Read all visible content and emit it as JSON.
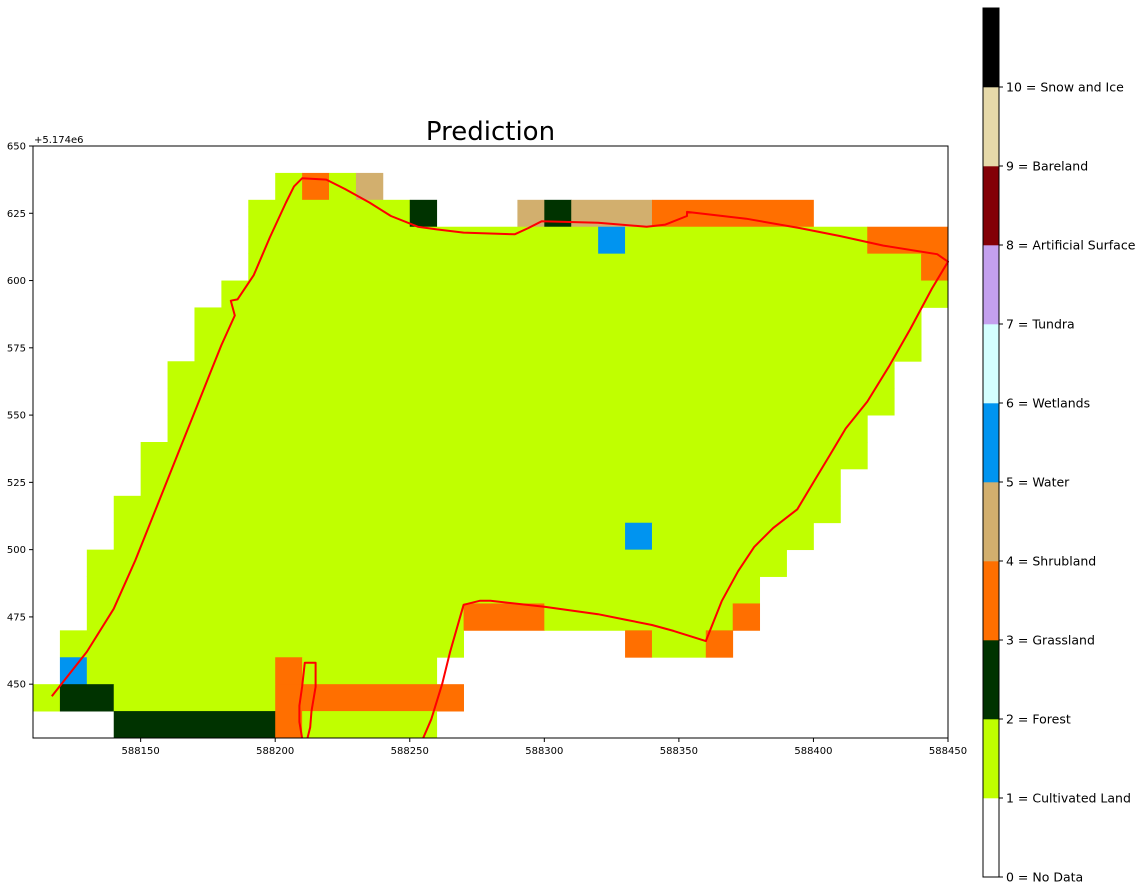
{
  "chart_data": {
    "type": "heatmap",
    "title": "Prediction",
    "offset_label": "+5.174e6",
    "xlim": [
      588110,
      588450
    ],
    "ylim": [
      430,
      650
    ],
    "x_tick_values": [
      588150,
      588200,
      588250,
      588300,
      588350,
      588400,
      588450
    ],
    "x_tick_labels": [
      "588150",
      "588200",
      "588250",
      "588300",
      "588350",
      "588400",
      "588450"
    ],
    "y_tick_values": [
      450,
      475,
      500,
      525,
      550,
      575,
      600,
      625,
      650
    ],
    "y_tick_labels": [
      "450",
      "475",
      "500",
      "525",
      "550",
      "575",
      "600",
      "625",
      "650"
    ],
    "cell_size": 10,
    "background_class": 0,
    "rows": [
      {
        "y": 630,
        "cells": [
          [
            588200,
            588210,
            1
          ],
          [
            588210,
            588220,
            3
          ],
          [
            588220,
            588230,
            1
          ],
          [
            588230,
            588240,
            4
          ]
        ]
      },
      {
        "y": 620,
        "cells": [
          [
            588190,
            588250,
            1
          ],
          [
            588250,
            588260,
            2
          ],
          [
            588290,
            588300,
            4
          ],
          [
            588300,
            588310,
            2
          ],
          [
            588310,
            588340,
            4
          ],
          [
            588340,
            588400,
            3
          ]
        ]
      },
      {
        "y": 610,
        "cells": [
          [
            588190,
            588320,
            1
          ],
          [
            588320,
            588330,
            5
          ],
          [
            588330,
            588420,
            1
          ],
          [
            588420,
            588450,
            3
          ]
        ]
      },
      {
        "y": 600,
        "cells": [
          [
            588190,
            588440,
            1
          ],
          [
            588440,
            588450,
            3
          ]
        ]
      },
      {
        "y": 590,
        "cells": [
          [
            588180,
            588450,
            1
          ]
        ]
      },
      {
        "y": 580,
        "cells": [
          [
            588170,
            588440,
            1
          ]
        ]
      },
      {
        "y": 570,
        "cells": [
          [
            588170,
            588440,
            1
          ]
        ]
      },
      {
        "y": 560,
        "cells": [
          [
            588160,
            588430,
            1
          ]
        ]
      },
      {
        "y": 550,
        "cells": [
          [
            588160,
            588430,
            1
          ]
        ]
      },
      {
        "y": 540,
        "cells": [
          [
            588160,
            588420,
            1
          ]
        ]
      },
      {
        "y": 530,
        "cells": [
          [
            588150,
            588420,
            1
          ]
        ]
      },
      {
        "y": 520,
        "cells": [
          [
            588150,
            588410,
            1
          ]
        ]
      },
      {
        "y": 510,
        "cells": [
          [
            588140,
            588410,
            1
          ]
        ]
      },
      {
        "y": 500,
        "cells": [
          [
            588140,
            588330,
            1
          ],
          [
            588330,
            588340,
            5
          ],
          [
            588340,
            588400,
            1
          ]
        ]
      },
      {
        "y": 490,
        "cells": [
          [
            588130,
            588390,
            1
          ]
        ]
      },
      {
        "y": 480,
        "cells": [
          [
            588130,
            588380,
            1
          ]
        ]
      },
      {
        "y": 470,
        "cells": [
          [
            588130,
            588270,
            1
          ],
          [
            588270,
            588300,
            3
          ],
          [
            588300,
            588370,
            1
          ],
          [
            588370,
            588380,
            3
          ]
        ]
      },
      {
        "y": 460,
        "cells": [
          [
            588120,
            588270,
            1
          ],
          [
            588330,
            588340,
            3
          ],
          [
            588340,
            588360,
            1
          ],
          [
            588360,
            588370,
            3
          ]
        ]
      },
      {
        "y": 450,
        "cells": [
          [
            588120,
            588130,
            5
          ],
          [
            588130,
            588200,
            1
          ],
          [
            588200,
            588210,
            3
          ],
          [
            588210,
            588260,
            1
          ]
        ]
      },
      {
        "y": 440,
        "cells": [
          [
            588110,
            588120,
            1
          ],
          [
            588120,
            588140,
            2
          ],
          [
            588140,
            588200,
            1
          ],
          [
            588200,
            588210,
            3
          ],
          [
            588210,
            588270,
            3
          ]
        ]
      },
      {
        "y": 430,
        "cells": [
          [
            588140,
            588200,
            2
          ],
          [
            588200,
            588210,
            3
          ],
          [
            588210,
            588260,
            1
          ]
        ]
      }
    ],
    "boundary_polygon": [
      [
        588117,
        445.5
      ],
      [
        588130,
        462
      ],
      [
        588140,
        478
      ],
      [
        588148,
        496
      ],
      [
        588156,
        516
      ],
      [
        588164,
        536
      ],
      [
        588172,
        556
      ],
      [
        588176,
        566
      ],
      [
        588180,
        576
      ],
      [
        588185,
        587
      ],
      [
        588183.5,
        592.5
      ],
      [
        588186,
        593
      ],
      [
        588192,
        602
      ],
      [
        588198,
        616
      ],
      [
        588204,
        629
      ],
      [
        588207,
        635
      ],
      [
        588210,
        638
      ],
      [
        588219,
        637.5
      ],
      [
        588226,
        634
      ],
      [
        588235,
        629
      ],
      [
        588243,
        624
      ],
      [
        588253,
        620
      ],
      [
        588260,
        619
      ],
      [
        588270,
        617.8
      ],
      [
        588289,
        617.2
      ],
      [
        588294,
        619.5
      ],
      [
        588299,
        622
      ],
      [
        588320,
        621.5
      ],
      [
        588338,
        620
      ],
      [
        588345,
        620.8
      ],
      [
        588353,
        624
      ],
      [
        588353,
        625.5
      ],
      [
        588375,
        623
      ],
      [
        588395,
        619.5
      ],
      [
        588410,
        616.5
      ],
      [
        588426,
        613
      ],
      [
        588446,
        609.8
      ],
      [
        588450,
        607
      ],
      [
        588444,
        597
      ],
      [
        588436,
        582
      ],
      [
        588428,
        568
      ],
      [
        588420,
        555
      ],
      [
        588412,
        545
      ],
      [
        588406,
        535
      ],
      [
        588400,
        525
      ],
      [
        588394,
        515
      ],
      [
        588385,
        508
      ],
      [
        588378,
        501
      ],
      [
        588372,
        492
      ],
      [
        588366,
        481
      ],
      [
        588360,
        466
      ],
      [
        588348,
        469.8
      ],
      [
        588340,
        472
      ],
      [
        588330,
        474
      ],
      [
        588320,
        476
      ],
      [
        588300,
        478.8
      ],
      [
        588280,
        481
      ],
      [
        588276,
        481
      ],
      [
        588270,
        479.5
      ],
      [
        588265,
        462
      ],
      [
        588262,
        450
      ],
      [
        588258,
        437
      ],
      [
        588255,
        430
      ]
    ],
    "boundary_inner_strip": [
      [
        588210,
        430
      ],
      [
        588209,
        436
      ],
      [
        588209,
        442
      ],
      [
        588210,
        449
      ],
      [
        588211,
        458
      ],
      [
        588215,
        458
      ],
      [
        588215,
        449
      ],
      [
        588213.5,
        440
      ],
      [
        588213,
        434
      ],
      [
        588212,
        430
      ]
    ],
    "boundary_color": "#ff0000",
    "colorbar": {
      "labels": [
        "0 = No Data",
        "1 = Cultivated Land",
        "2 = Forest",
        "3 = Grassland",
        "4 = Shrubland",
        "5 = Water",
        "6 = Wetlands",
        "7 = Tundra",
        "8 = Artificial Surface",
        "9 = Bareland",
        "10 = Snow and Ice"
      ],
      "colors": [
        "#ffffff",
        "#c0ff00",
        "#003300",
        "#ff6f00",
        "#d2af6e",
        "#0094f0",
        "#d4ffff",
        "#c4a0ee",
        "#830006",
        "#e6d9a9",
        "#000000"
      ],
      "range": [
        0,
        11
      ]
    }
  }
}
